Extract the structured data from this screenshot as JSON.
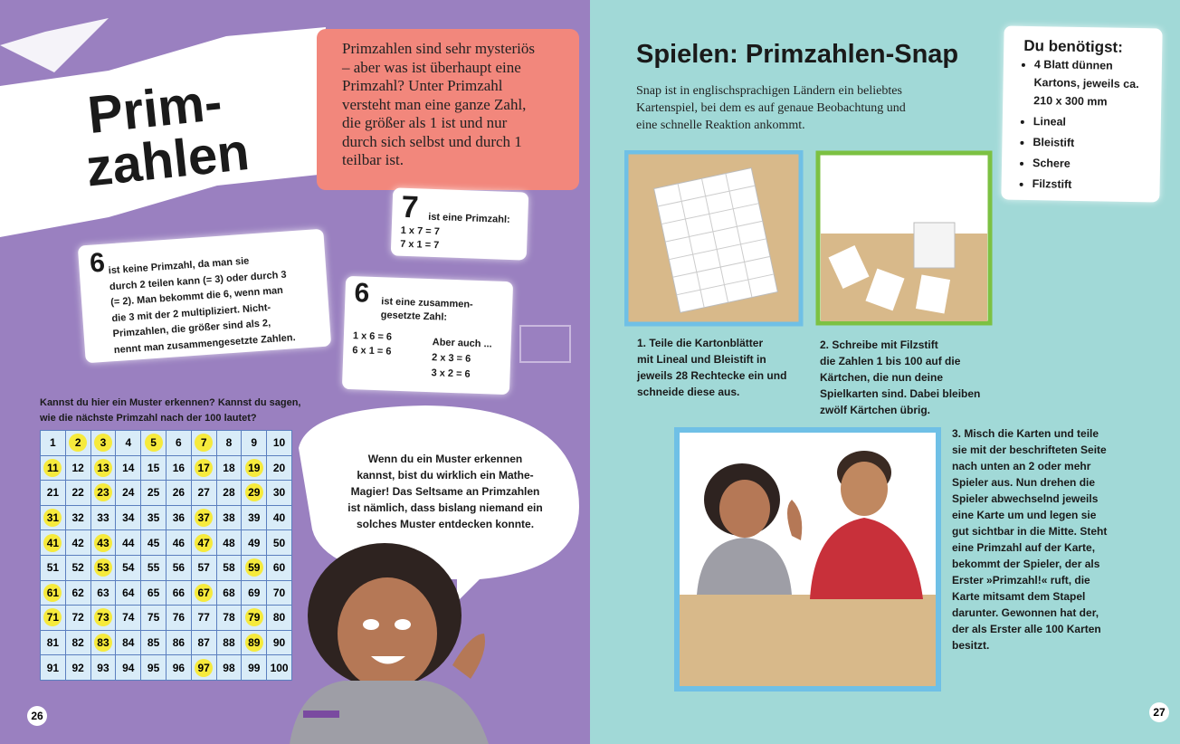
{
  "left_page": {
    "title": [
      "Prim-",
      "zahlen"
    ],
    "intro": [
      "Primzahlen sind sehr mysteriös",
      "– aber was ist überhaupt eine",
      "Primzahl? Unter Primzahl",
      "versteht man eine ganze Zahl,",
      "die größer als 1 ist und nur",
      "durch sich selbst und durch 1",
      "teilbar ist."
    ],
    "box_seven": {
      "number": "7",
      "heading": "ist eine Primzahl:",
      "lines": [
        "1 x 7 = 7",
        "7 x 1 = 7"
      ]
    },
    "box_six_not_prime": {
      "number": "6",
      "lines": [
        "ist keine Primzahl, da man sie",
        "durch 2 teilen kann (= 3) oder durch 3",
        "(= 2). Man bekommt die 6, wenn man",
        "die 3 mit der 2 multipliziert. Nicht-",
        "Primzahlen, die größer sind als 2,",
        "nennt man zusammengesetzte Zahlen."
      ]
    },
    "box_six_composite": {
      "number": "6",
      "heading": [
        "ist eine zusammen-",
        "gesetzte Zahl:"
      ],
      "left": [
        "1 x 6 = 6",
        "6 x 1 = 6"
      ],
      "right": [
        "Aber auch ...",
        "2 x 3 = 6",
        "3 x 2 = 6"
      ]
    },
    "question": [
      "Kannst du hier ein Muster erkennen? Kannst du sagen,",
      "wie die nächste Primzahl nach der 100 lautet?"
    ],
    "grid": {
      "highlight_color": "#f6ea3c",
      "rows": [
        [
          1,
          2,
          3,
          4,
          5,
          6,
          7,
          8,
          9,
          10
        ],
        [
          11,
          12,
          13,
          14,
          15,
          16,
          17,
          18,
          19,
          20
        ],
        [
          21,
          22,
          23,
          24,
          25,
          26,
          27,
          28,
          29,
          30
        ],
        [
          31,
          32,
          33,
          34,
          35,
          36,
          37,
          38,
          39,
          40
        ],
        [
          41,
          42,
          43,
          44,
          45,
          46,
          47,
          48,
          49,
          50
        ],
        [
          51,
          52,
          53,
          54,
          55,
          56,
          57,
          58,
          59,
          60
        ],
        [
          61,
          62,
          63,
          64,
          65,
          66,
          67,
          68,
          69,
          70
        ],
        [
          71,
          72,
          73,
          74,
          75,
          76,
          77,
          78,
          79,
          80
        ],
        [
          81,
          82,
          83,
          84,
          85,
          86,
          87,
          88,
          89,
          90
        ],
        [
          91,
          92,
          93,
          94,
          95,
          96,
          97,
          98,
          99,
          100
        ]
      ]
    },
    "speech_bubble": [
      "Wenn du ein Muster erkennen",
      "kannst, bist du wirklich ein Mathe-",
      "Magier! Das Seltsame an Primzahlen",
      "ist nämlich, dass bislang niemand ein",
      "solches Muster entdecken konnte."
    ],
    "page_number": "26"
  },
  "right_page": {
    "title": "Spielen: Primzahlen-Snap",
    "intro": [
      "Snap ist in englischsprachigen Ländern ein beliebtes",
      "Kartenspiel, bei dem es auf genaue Beobachtung und",
      "eine schnelle Reaktion ankommt."
    ],
    "needs": {
      "title": "Du benötigst:",
      "items": [
        [
          "4 Blatt dünnen",
          "Kartons, jeweils ca.",
          "210 x 300 mm"
        ],
        [
          "Lineal"
        ],
        [
          "Bleistift"
        ],
        [
          "Schere"
        ],
        [
          "Filzstift"
        ]
      ]
    },
    "steps": [
      [
        "1. Teile die Kartonblätter",
        "mit Lineal und Bleistift in",
        "jeweils 28 Rechtecke ein und",
        "schneide diese aus."
      ],
      [
        "2. Schreibe mit Filzstift",
        "die Zahlen 1 bis 100 auf die",
        "Kärtchen, die nun deine",
        "Spielkarten sind. Dabei bleiben",
        "zwölf Kärtchen übrig."
      ],
      [
        "3. Misch die Karten und teile",
        "sie mit der beschrifteten Seite",
        "nach unten an 2 oder mehr",
        "Spieler aus. Nun drehen die",
        "Spieler abwechselnd jeweils",
        "eine Karte um und legen sie",
        "gut sichtbar in die Mitte. Steht",
        "eine Primzahl auf der Karte,",
        "bekommt der Spieler, der als",
        "Erster »Primzahl!« ruft, die",
        "Karte mitsamt dem Stapel",
        "darunter. Gewonnen hat der,",
        "der als Erster alle 100 Karten",
        "besitzt."
      ]
    ],
    "page_number": "27"
  }
}
